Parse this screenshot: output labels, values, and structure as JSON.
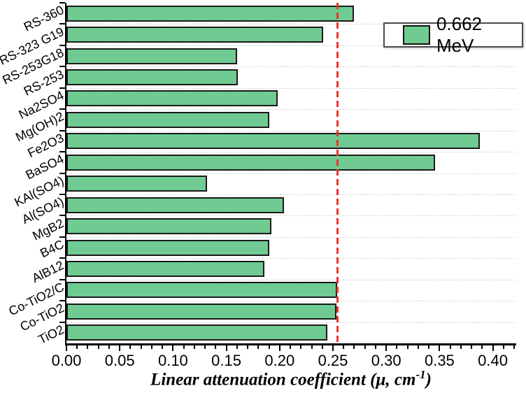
{
  "figure": {
    "legend": {
      "label": "0.662 MeV",
      "swatch_color": "#6FCB92"
    },
    "xlabel": {
      "prefix": "Linear attenuation coefficient (μ, cm",
      "superscript": "-1",
      "suffix": ")",
      "full": "Linear attenuation coefficient (μ, cm⁻¹)"
    }
  },
  "chart_data": {
    "type": "bar",
    "orientation": "horizontal",
    "title": "",
    "xlabel": "Linear attenuation coefficient (μ, cm⁻¹)",
    "ylabel": "",
    "xlim": [
      0,
      0.421
    ],
    "xticks_major": [
      "0.00",
      "0.05",
      "0.10",
      "0.15",
      "0.20",
      "0.25",
      "0.30",
      "0.35",
      "0.40"
    ],
    "minor_tick_step": 0.01,
    "grid": "horizontal-dashed",
    "legend_position": "top-right",
    "legend": [
      {
        "name": "0.662 MeV",
        "color": "#6FCB92"
      }
    ],
    "categories": [
      "RS-360",
      "RS-323 G19",
      "RS-253G18",
      "RS-253",
      "Na2SO4",
      "Mg(OH)2",
      "Fe2O3",
      "BaSO4",
      "KAl(SO4)",
      "Al(SO4)",
      "MgB2",
      "B4C",
      "AlB12",
      "Co-TiO2/C",
      "Co-TiO2",
      "TiO2"
    ],
    "values": [
      0.27,
      0.241,
      0.16,
      0.161,
      0.198,
      0.19,
      0.388,
      0.346,
      0.132,
      0.204,
      0.192,
      0.19,
      0.186,
      0.254,
      0.253,
      0.245
    ],
    "series": [
      {
        "name": "0.662 MeV",
        "values": [
          0.27,
          0.241,
          0.16,
          0.161,
          0.198,
          0.19,
          0.388,
          0.346,
          0.132,
          0.204,
          0.192,
          0.19,
          0.186,
          0.254,
          0.253,
          0.245
        ]
      }
    ],
    "reference_line": {
      "value": 0.254,
      "orientation": "vertical",
      "style": "dashed",
      "color": "#E8372B"
    },
    "bar_fill": "#6FCB92",
    "bar_edge": "#1A1A1A"
  }
}
